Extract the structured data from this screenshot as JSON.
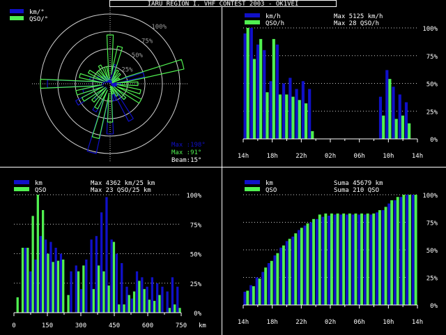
{
  "title": "IARU REGION I. VHF CONTEST 2003 - OK1VEI",
  "colors": {
    "blue": "#1010c8",
    "green": "#50f050",
    "white": "#ffffff",
    "bg": "#000000"
  },
  "chart_data": [
    {
      "id": "polar",
      "type": "polar",
      "legend": [
        "km/°",
        "QSO/°"
      ],
      "ring_labels": [
        "100%",
        "75%",
        "50%",
        "25%"
      ],
      "info": {
        "max_km_label": "Max :198°",
        "max_qso_label": "Max :91°",
        "beam_label": "Beam:15°"
      },
      "angle_step_deg": 15,
      "series": [
        {
          "name": "km/°",
          "values": [
            0.05,
            0.28,
            0.12,
            0.1,
            0.08,
            0.5,
            0.15,
            0.1,
            0.08,
            0.3,
            0.6,
            0.25,
            0.72,
            1.02,
            0.45,
            0.3,
            0.55,
            0.4,
            0.9,
            0.3,
            0.2,
            0.15,
            0.12,
            0.08
          ]
        },
        {
          "name": "QSO/°",
          "values": [
            0.7,
            0.55,
            0.22,
            0.2,
            0.15,
            1.2,
            0.4,
            0.45,
            0.5,
            0.3,
            0.2,
            0.15,
            0.55,
            0.8,
            0.4,
            0.35,
            0.45,
            0.5,
            1.0,
            0.45,
            0.35,
            0.25,
            0.3,
            0.25
          ]
        }
      ]
    },
    {
      "id": "hourly",
      "type": "bar",
      "legend": [
        "km/h",
        "QSO/h"
      ],
      "max_labels": [
        "Max  5125 km/h",
        "Max   28 QSO/h"
      ],
      "x_ticks": [
        "14h",
        "18h",
        "22h",
        "02h",
        "06h",
        "10h",
        "14h"
      ],
      "y_ticks": [
        "100%",
        "75%",
        "50%",
        "25%",
        "0%"
      ],
      "series": [
        {
          "name": "km/h",
          "values": [
            95,
            100,
            85,
            80,
            52,
            85,
            50,
            55,
            45,
            52,
            45,
            0,
            0,
            0,
            0,
            0,
            0,
            0,
            0,
            0,
            0,
            38,
            62,
            47,
            40,
            33,
            0
          ]
        },
        {
          "name": "QSO/h",
          "values": [
            100,
            72,
            90,
            42,
            90,
            40,
            40,
            38,
            35,
            32,
            7,
            0,
            0,
            0,
            0,
            0,
            0,
            0,
            0,
            0,
            0,
            21,
            54,
            18,
            21,
            14,
            0
          ]
        }
      ]
    },
    {
      "id": "distance",
      "type": "bar",
      "legend": [
        "km",
        "QSO"
      ],
      "max_labels": [
        "Max  4362 km/25 km",
        "Max   23 QSO/25 km"
      ],
      "x_ticks": [
        "0",
        "150",
        "300",
        "450",
        "600",
        "750"
      ],
      "x_unit": "km",
      "y_ticks": [
        "100%",
        "75%",
        "50%",
        "25%",
        "0%"
      ],
      "series": [
        {
          "name": "km",
          "values": [
            0,
            0,
            55,
            35,
            45,
            65,
            62,
            60,
            55,
            50,
            0,
            35,
            40,
            20,
            45,
            62,
            65,
            85,
            98,
            62,
            50,
            42,
            22,
            12,
            35,
            30,
            22,
            30,
            25,
            22,
            18,
            30,
            22
          ]
        },
        {
          "name": "QSO",
          "values": [
            13,
            55,
            55,
            82,
            100,
            87,
            50,
            43,
            44,
            45,
            15,
            0,
            35,
            40,
            0,
            20,
            40,
            35,
            23,
            60,
            7,
            7,
            15,
            18,
            27,
            20,
            11,
            10,
            15,
            0,
            4,
            7,
            4
          ]
        }
      ]
    },
    {
      "id": "cumulative",
      "type": "bar",
      "legend": [
        "km",
        "QSO"
      ],
      "max_labels": [
        "Suma  45679 km",
        "Suma   210 QSO"
      ],
      "x_ticks": [
        "14h",
        "18h",
        "22h",
        "02h",
        "06h",
        "10h",
        "14h"
      ],
      "y_ticks": [
        "100%",
        "75%",
        "50%",
        "25%",
        "0%"
      ],
      "series": [
        {
          "name": "km",
          "values": [
            12,
            18,
            25,
            30,
            38,
            45,
            52,
            58,
            62,
            68,
            72,
            75,
            78,
            80,
            81,
            82,
            82,
            82,
            82,
            82,
            82,
            82,
            84,
            86,
            92,
            95,
            98,
            100,
            100
          ]
        },
        {
          "name": "QSO",
          "values": [
            13,
            17,
            24,
            34,
            40,
            47,
            54,
            60,
            65,
            70,
            74,
            78,
            82,
            83,
            83,
            83,
            83,
            83,
            83,
            83,
            83,
            83,
            86,
            89,
            95,
            98,
            100,
            100,
            100
          ]
        }
      ]
    }
  ]
}
